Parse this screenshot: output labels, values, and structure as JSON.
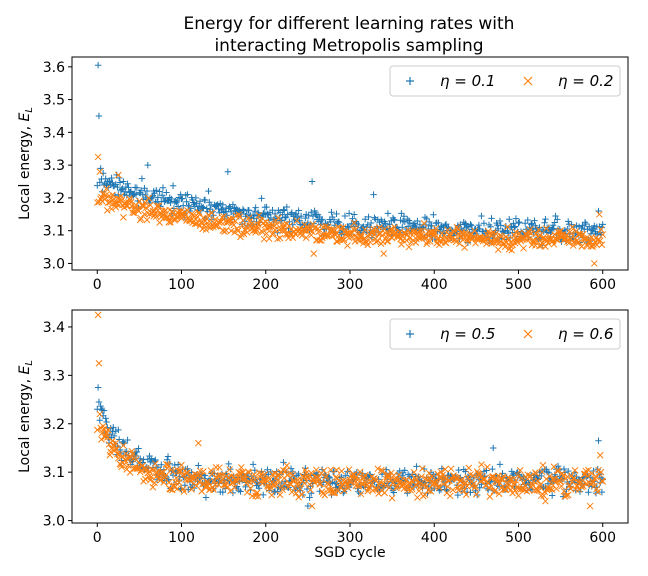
{
  "figure": {
    "title_line1": "Energy for different learning rates with",
    "title_line2": "interacting Metropolis sampling"
  },
  "colors": {
    "series1": "#1f77b4",
    "series2": "#ff7f0e"
  },
  "chart_data": [
    {
      "type": "scatter",
      "xlabel": "",
      "ylabel": "Local energy, E_L",
      "xlim": [
        -30,
        630
      ],
      "ylim": [
        2.98,
        3.63
      ],
      "xticks": [
        0,
        100,
        200,
        300,
        400,
        500,
        600
      ],
      "yticks": [
        3.0,
        3.1,
        3.2,
        3.3,
        3.4,
        3.5,
        3.6
      ],
      "legend_position": "top-right",
      "series": [
        {
          "name": "η = 0.1",
          "marker": "+",
          "n_points": 601,
          "trend": {
            "start": 3.25,
            "end": 3.09,
            "decay_cycles": 180,
            "noise": 0.035
          },
          "highlighted_points": [
            [
              1,
              3.605
            ],
            [
              2,
              3.45
            ],
            [
              4,
              3.29
            ],
            [
              60,
              3.3
            ],
            [
              155,
              3.28
            ],
            [
              255,
              3.25
            ],
            [
              328,
              3.21
            ],
            [
              595,
              3.16
            ]
          ]
        },
        {
          "name": "η = 0.2",
          "marker": "x",
          "n_points": 601,
          "trend": {
            "start": 3.21,
            "end": 3.07,
            "decay_cycles": 150,
            "noise": 0.03
          },
          "highlighted_points": [
            [
              1,
              3.325
            ],
            [
              3,
              3.28
            ],
            [
              25,
              3.27
            ],
            [
              257,
              3.03
            ],
            [
              340,
              3.03
            ],
            [
              590,
              3.0
            ],
            [
              596,
              3.15
            ]
          ]
        }
      ]
    },
    {
      "type": "scatter",
      "xlabel": "SGD cycle",
      "ylabel": "Local energy, E_L",
      "xlim": [
        -30,
        630
      ],
      "ylim": [
        2.995,
        3.435
      ],
      "xticks": [
        0,
        100,
        200,
        300,
        400,
        500,
        600
      ],
      "yticks": [
        3.0,
        3.1,
        3.2,
        3.3,
        3.4
      ],
      "legend_position": "top-right",
      "series": [
        {
          "name": "η = 0.5",
          "marker": "+",
          "n_points": 601,
          "trend": {
            "start": 3.23,
            "end": 3.08,
            "decay_cycles": 40,
            "noise": 0.028
          },
          "highlighted_points": [
            [
              1,
              3.275
            ],
            [
              2,
              3.245
            ],
            [
              5,
              3.23
            ],
            [
              250,
              3.03
            ],
            [
              470,
              3.15
            ],
            [
              595,
              3.165
            ]
          ]
        },
        {
          "name": "η = 0.6",
          "marker": "x",
          "n_points": 601,
          "trend": {
            "start": 3.2,
            "end": 3.08,
            "decay_cycles": 35,
            "noise": 0.028
          },
          "highlighted_points": [
            [
              1,
              3.425
            ],
            [
              2,
              3.325
            ],
            [
              3,
              3.22
            ],
            [
              120,
              3.16
            ],
            [
              255,
              3.03
            ],
            [
              585,
              3.03
            ],
            [
              597,
              3.135
            ]
          ]
        }
      ]
    }
  ]
}
